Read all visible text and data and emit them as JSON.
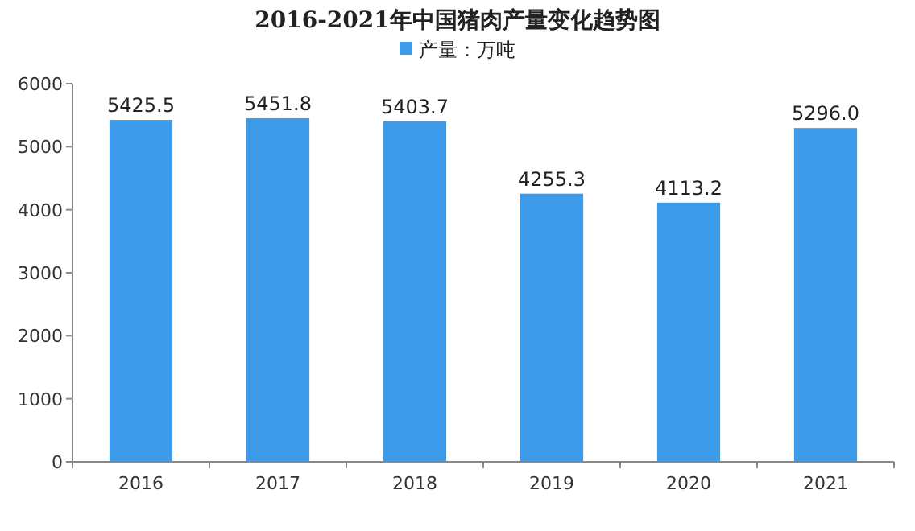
{
  "chart_data": {
    "type": "bar",
    "title": "2016-2021年中国猪肉产量变化趋势图",
    "categories": [
      "2016",
      "2017",
      "2018",
      "2019",
      "2020",
      "2021"
    ],
    "series": [
      {
        "name": "产量：万吨",
        "color": "#3d9be9",
        "values": [
          5425.5,
          5451.8,
          5403.7,
          4255.3,
          4113.2,
          5296.0
        ],
        "value_labels": [
          "5425.5",
          "5451.8",
          "5403.7",
          "4255.3",
          "4113.2",
          "5296.0"
        ]
      }
    ],
    "ylim": [
      0,
      6000
    ],
    "yticks": [
      0,
      1000,
      2000,
      3000,
      4000,
      5000,
      6000
    ],
    "legend": "top"
  }
}
